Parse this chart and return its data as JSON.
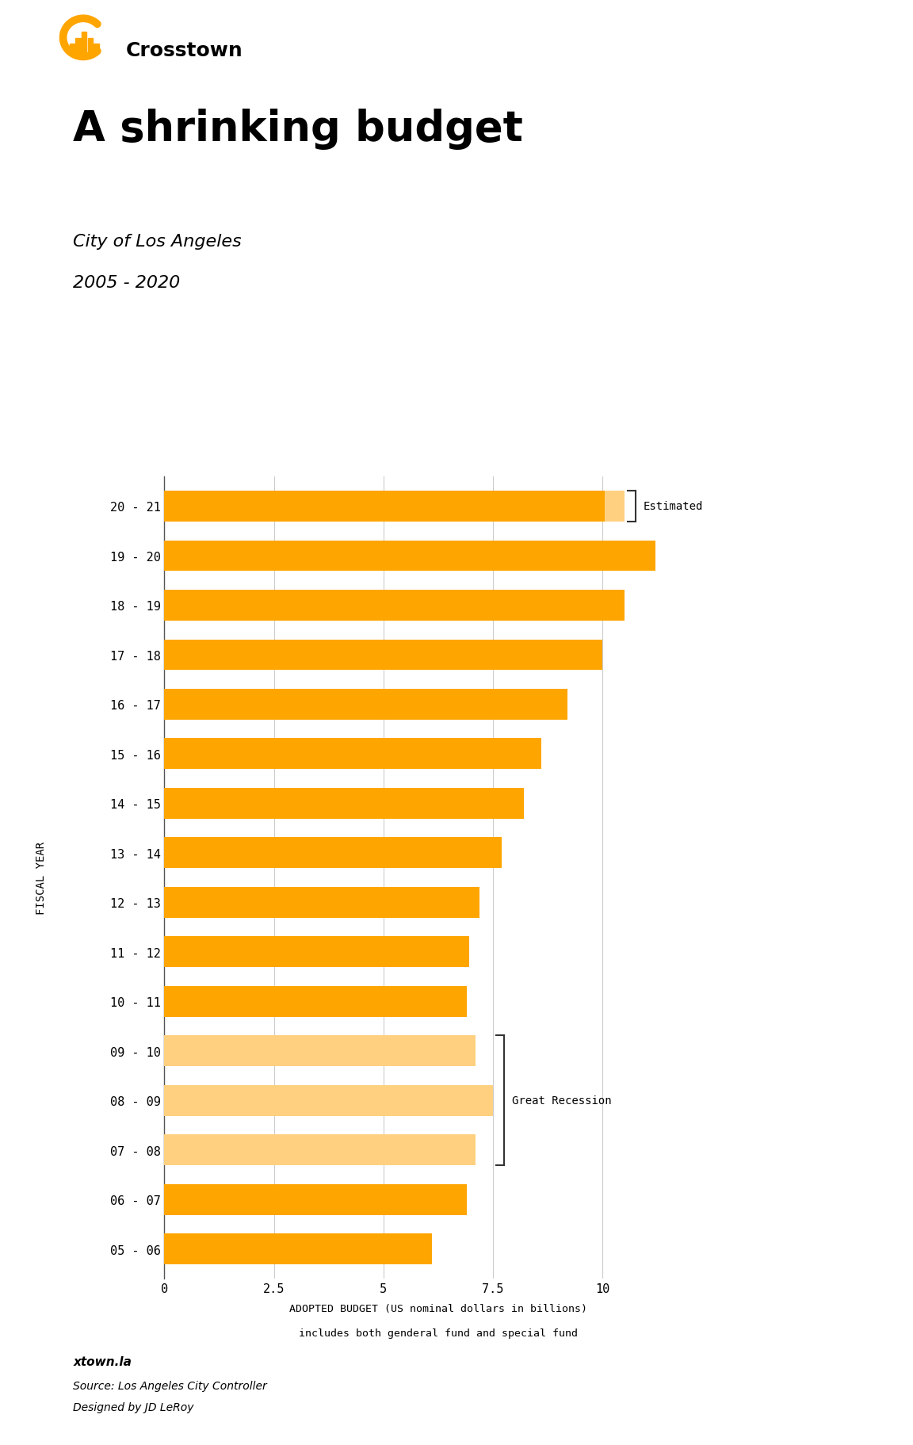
{
  "title": "A shrinking budget",
  "subtitle_line1": "City of Los Angeles",
  "subtitle_line2": "2005 - 2020",
  "xlabel_line1": "ADOPTED BUDGET (US nominal dollars in billions)",
  "xlabel_line2": "includes both genderal fund and special fund",
  "ylabel": "FISCAL YEAR",
  "categories": [
    "05 - 06",
    "06 - 07",
    "07 - 08",
    "08 - 09",
    "09 - 10",
    "10 - 11",
    "11 - 12",
    "12 - 13",
    "13 - 14",
    "14 - 15",
    "15 - 16",
    "16 - 17",
    "17 - 18",
    "18 - 19",
    "19 - 20",
    "20 - 21"
  ],
  "values": [
    6.1,
    6.9,
    7.1,
    7.5,
    7.1,
    6.9,
    6.95,
    7.2,
    7.7,
    8.2,
    8.6,
    9.2,
    10.0,
    10.5,
    11.2,
    10.5
  ],
  "estimated_extra": 0.45,
  "bar_colors": [
    "#FFA500",
    "#FFA500",
    "#FFD080",
    "#FFD080",
    "#FFD080",
    "#FFA500",
    "#FFA500",
    "#FFA500",
    "#FFA500",
    "#FFA500",
    "#FFA500",
    "#FFA500",
    "#FFA500",
    "#FFA500",
    "#FFA500",
    "#FFA500"
  ],
  "estimated_color": "#FFD080",
  "xlim_max": 12.5,
  "xticks": [
    0,
    2.5,
    5.0,
    7.5,
    10.0
  ],
  "xtick_labels": [
    "0",
    "2.5",
    "5",
    "7.5",
    "10"
  ],
  "background_color": "#ffffff",
  "annotation_recession": "Great Recession",
  "annotation_estimated": "Estimated",
  "footer_bold": "xtown.la",
  "footer_line2": "Source: Los Angeles City Controller",
  "footer_line3": "Designed by JD LeRoy",
  "crosstown_text": "Crosstown",
  "logo_orange": "#FFA500",
  "bracket_color": "#333333"
}
